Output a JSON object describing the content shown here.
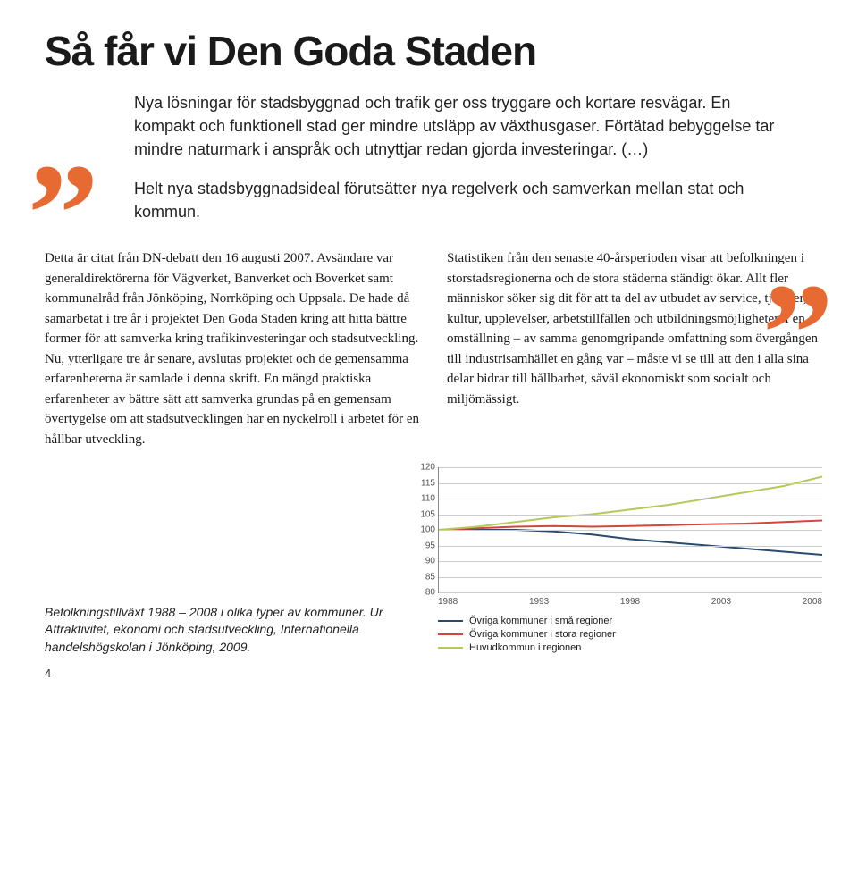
{
  "title": "Så får vi Den Goda Staden",
  "quote": {
    "p1": "Nya lösningar för stadsbyggnad och trafik ger oss tryggare och kortare resvägar. En kompakt och funktionell stad ger mindre utsläpp av växthusgaser. Förtätad bebyggelse tar mindre naturmark i anspråk och utnyttjar redan gjorda investeringar. (…)",
    "p2": "Helt nya stadsbyggnadsideal förutsätter nya regelverk och samverkan mellan stat och kommun."
  },
  "body": {
    "left": "Detta är citat från DN-debatt den 16 augusti 2007. Avsändare var generaldirektörerna för Vägverket, Banverket och Boverket samt kommunalråd från Jönköping, Norrköping och Uppsala. De hade då samarbetat i tre år i projektet Den Goda Staden kring att hitta bättre former för att samverka kring trafikinvesteringar och stadsutveckling. Nu, ytterligare tre år senare, avslutas projektet och de gemensamma erfarenheterna är samlade i denna skrift. En mängd praktiska erfarenheter av bättre sätt att samverka grundas på en gemensam övertygelse om att stadsutvecklingen har en nyckelroll i arbetet för en hållbar utveckling.",
    "right": "Statistiken från den senaste 40-årsperioden visar att befolkningen i storstadsregionerna och de stora städerna ständigt ökar. Allt fler människor söker sig dit för att ta del av utbudet av service, tjänster, kultur, upplevelser, arbetstillfällen och utbildningsmöjligheter. I en omställning – av samma genomgripande omfattning som övergången till industrisamhället en gång var – måste vi se till att den i alla sina delar bidrar till hållbarhet, såväl ekonomiskt som socialt och miljömässigt."
  },
  "caption": "Befolkningstillväxt 1988 – 2008 i olika typer av kommuner. Ur Attraktivitet, ekonomi och stadsutveckling, Internationella handelshögskolan i Jönköping, 2009.",
  "chart": {
    "type": "line",
    "ylim": [
      80,
      120
    ],
    "ytick_step": 5,
    "yticks": [
      80,
      85,
      90,
      95,
      100,
      105,
      110,
      115,
      120
    ],
    "xticks": [
      1988,
      1993,
      1998,
      2003,
      2008
    ],
    "grid_color": "#cccccc",
    "axis_color": "#888888",
    "label_color": "#555555",
    "label_fontsize": 10,
    "background_color": "#ffffff",
    "line_width": 2,
    "series": [
      {
        "name": "Övriga kommuner i små regioner",
        "color": "#2b4a6f",
        "x": [
          1988,
          1990,
          1992,
          1994,
          1996,
          1998,
          2000,
          2002,
          2004,
          2006,
          2008
        ],
        "y": [
          100,
          100,
          100,
          99.5,
          98.5,
          97,
          96,
          95,
          94,
          93,
          92
        ]
      },
      {
        "name": "Övriga kommuner i stora regioner",
        "color": "#d2463b",
        "x": [
          1988,
          1990,
          1992,
          1994,
          1996,
          1998,
          2000,
          2002,
          2004,
          2006,
          2008
        ],
        "y": [
          100,
          100.5,
          101,
          101.2,
          101,
          101.2,
          101.5,
          101.8,
          102,
          102.5,
          103
        ]
      },
      {
        "name": "Huvudkommun i regionen",
        "color": "#b6c85a",
        "x": [
          1988,
          1990,
          1992,
          1994,
          1996,
          1998,
          2000,
          2002,
          2004,
          2006,
          2008
        ],
        "y": [
          100,
          101,
          102.5,
          104,
          105,
          106.5,
          108,
          110,
          112,
          114,
          117
        ]
      }
    ]
  },
  "page_number": "4",
  "colors": {
    "accent": "#e86a33",
    "text": "#1a1a1a"
  }
}
